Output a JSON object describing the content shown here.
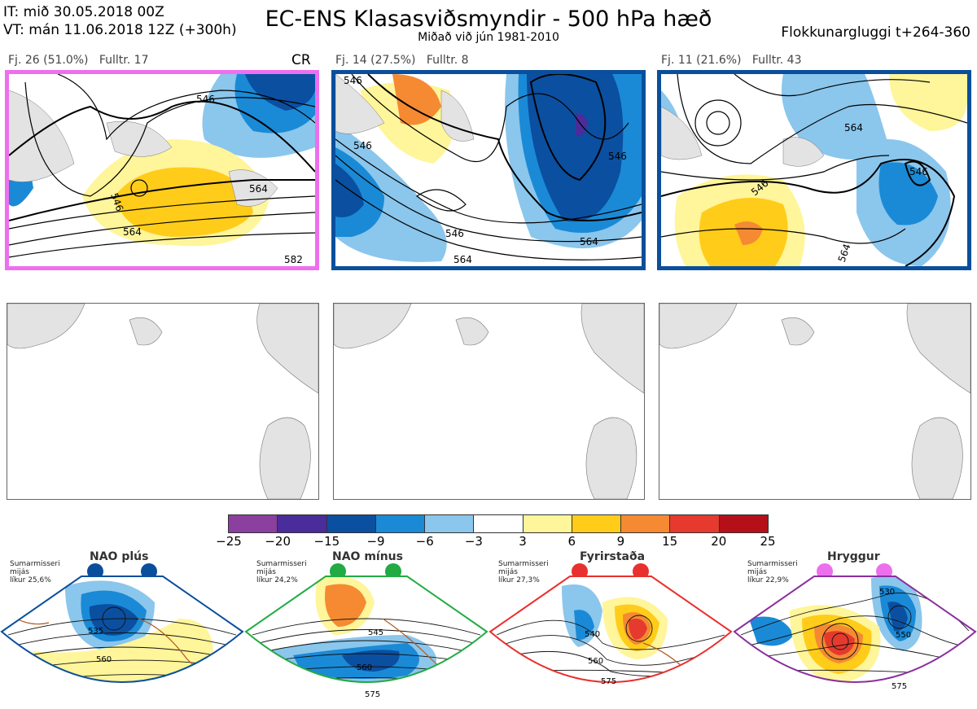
{
  "header": {
    "init_time": "IT: mið 30.05.2018 00Z",
    "valid_time": "VT: mán 11.06.2018 12Z  (+300h)",
    "title": "EC-ENS Klasasviðsmyndir - 500 hPa hæð",
    "subtitle": "Miðað við jún 1981-2010",
    "window": "Flokkunargluggi t+264-360"
  },
  "panels": [
    {
      "label": "Fj. 26 (51.0%)   Fulltr. 17",
      "tag": "CR",
      "border_color": "#ee6fee",
      "contour_labels": [
        "546",
        "546",
        "564",
        "564",
        "582"
      ]
    },
    {
      "label": "Fj. 14 (27.5%)   Fulltr. 8",
      "tag": "",
      "border_color": "#0a4f9c",
      "contour_labels": [
        "546",
        "546",
        "546",
        "546",
        "564",
        "564"
      ]
    },
    {
      "label": "Fj. 11 (21.6%)   Fulltr. 43",
      "tag": "",
      "border_color": "#0a4f9c",
      "contour_labels": [
        "546",
        "546",
        "564",
        "564"
      ]
    }
  ],
  "colorbar": {
    "ticks": [
      "−25",
      "−20",
      "−15",
      "−9",
      "−6",
      "−3",
      "3",
      "6",
      "9",
      "15",
      "20",
      "25"
    ],
    "colors": [
      "#8b3f9e",
      "#4a2c9a",
      "#0b4fa0",
      "#1a8ad6",
      "#8bc6ec",
      "#ffffff",
      "#fff59a",
      "#ffcc1a",
      "#f58a32",
      "#e53a2d",
      "#b51019"
    ]
  },
  "regimes": [
    {
      "name": "NAO plús",
      "note1": "Sumarmisseri",
      "note2": "mijás",
      "note3": "líkur 25,6%",
      "color": "#0a4f9c",
      "labels": [
        "535",
        "560"
      ]
    },
    {
      "name": "NAO mínus",
      "note1": "Sumarmisseri",
      "note2": "mijás",
      "note3": "líkur 24,2%",
      "color": "#22aa44",
      "labels": [
        "545",
        "560",
        "575"
      ]
    },
    {
      "name": "Fyrirstaða",
      "note1": "Sumarmisseri",
      "note2": "mijás",
      "note3": "líkur 27,3%",
      "color": "#e8302e",
      "labels": [
        "540",
        "560",
        "575"
      ]
    },
    {
      "name": "Hryggur",
      "note1": "Sumarmisseri",
      "note2": "mijás",
      "note3": "líkur 22,9%",
      "color": "#ee6fee",
      "labels": [
        "530",
        "550",
        "575"
      ]
    }
  ]
}
